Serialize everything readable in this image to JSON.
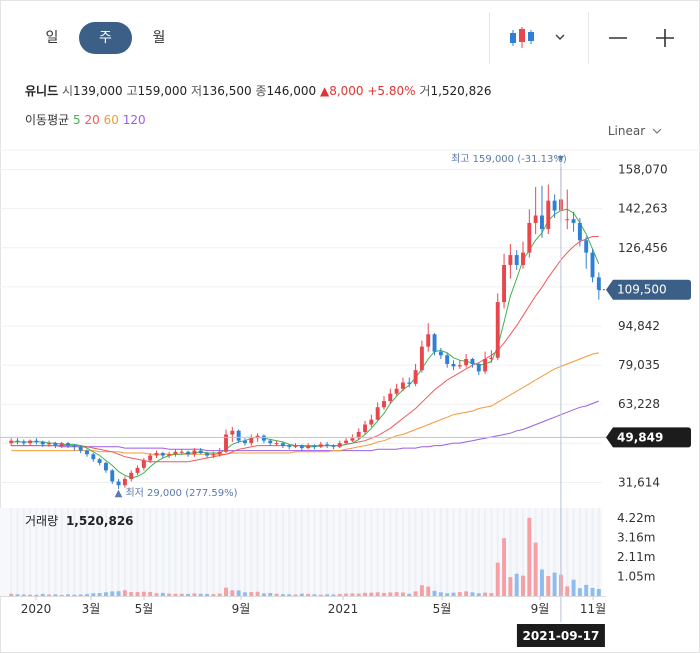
{
  "tabs": [
    {
      "label": "일",
      "active": false
    },
    {
      "label": "주",
      "active": true
    },
    {
      "label": "월",
      "active": false
    }
  ],
  "stock": {
    "name": "유니드",
    "open_label": "시",
    "open": "139,000",
    "high_label": "고",
    "high": "159,000",
    "low_label": "저",
    "low": "136,500",
    "close_label": "종",
    "close": "146,000",
    "change_arrow": "▲",
    "change": "8,000",
    "change_pct": "+5.80%",
    "volume_label": "거",
    "volume": "1,520,826"
  },
  "ma": {
    "label": "이동평균",
    "items": [
      {
        "value": "5",
        "color": "#3fb34f"
      },
      {
        "value": "20",
        "color": "#ef5a5a"
      },
      {
        "value": "60",
        "color": "#f39a3a"
      },
      {
        "value": "120",
        "color": "#9b5de5"
      }
    ]
  },
  "scale_label": "Linear",
  "colors": {
    "up": "#e8464d",
    "down": "#2f7fd6",
    "price_tag": "#3b5f86",
    "cross_tag": "#1c1c1c"
  },
  "chart_data": {
    "type": "candlestick",
    "y_ticks": [
      158070,
      142263,
      126456,
      110649,
      94842,
      79035,
      63228,
      47421,
      31614
    ],
    "y_tick_labels": [
      "158,070",
      "142,263",
      "126,456",
      "",
      "94,842",
      "79,035",
      "63,228",
      "",
      "31,614"
    ],
    "ylim": [
      23710,
      165974
    ],
    "last_price": 109500,
    "last_price_label": "109,500",
    "crosshair_price": 49849,
    "crosshair_price_label": "49,849",
    "crosshair_date": "2021-09-17",
    "high_annotation": "최고 159,000 (-31.13%)",
    "low_annotation": "▲ 최저 29,000 (277.59%)",
    "x_labels": [
      "2020",
      "3월",
      "5월",
      "9월",
      "2021",
      "5월",
      "9월",
      "11월"
    ],
    "volume_title": "거래량",
    "volume_value": "1,520,826",
    "volume_ticks": [
      4220000,
      3160000,
      2110000,
      1050000
    ],
    "volume_tick_labels": [
      "4.22m",
      "3.16m",
      "2.11m",
      "1.05m"
    ],
    "closes": [
      48500,
      48000,
      47500,
      48500,
      48000,
      47000,
      47500,
      46500,
      47500,
      46500,
      46000,
      44500,
      43000,
      41000,
      39500,
      36500,
      32000,
      30500,
      33000,
      35500,
      37500,
      40500,
      42500,
      43500,
      42500,
      43000,
      44000,
      44000,
      43000,
      44500,
      43500,
      42500,
      43000,
      44000,
      51000,
      52500,
      48500,
      47500,
      49500,
      50500,
      48500,
      47500,
      47500,
      46500,
      46000,
      46500,
      45500,
      46500,
      46000,
      47000,
      46500,
      46000,
      47500,
      48500,
      49500,
      52000,
      55000,
      57000,
      62000,
      64500,
      67500,
      69500,
      72000,
      71500,
      77000,
      86500,
      91500,
      84500,
      83000,
      79500,
      78500,
      79000,
      81500,
      79500,
      76500,
      81500,
      82000,
      104500,
      119500,
      123500,
      119500,
      124500,
      136500,
      139500,
      134000,
      145500,
      141500,
      146000,
      138000,
      136500,
      129500,
      124500,
      114500,
      109500
    ],
    "opens": [
      47500,
      48500,
      48000,
      47500,
      48500,
      48000,
      47000,
      47500,
      46500,
      47500,
      46500,
      46000,
      44500,
      43000,
      41000,
      39500,
      36500,
      32000,
      30500,
      33000,
      35500,
      37500,
      40500,
      42500,
      43500,
      42500,
      43000,
      44000,
      44000,
      43000,
      44500,
      43500,
      42500,
      43000,
      44000,
      51000,
      52500,
      48500,
      47500,
      49500,
      50500,
      48500,
      47500,
      47500,
      46500,
      46000,
      46500,
      45500,
      46500,
      46000,
      47000,
      46500,
      46000,
      47500,
      48500,
      49500,
      52000,
      55000,
      57000,
      62000,
      64500,
      67500,
      69500,
      72000,
      71500,
      77000,
      86500,
      91500,
      84500,
      83000,
      79500,
      78500,
      79000,
      81500,
      79500,
      76500,
      81500,
      82000,
      104500,
      119500,
      123500,
      119500,
      124500,
      136500,
      139500,
      134000,
      145500,
      141500,
      138000,
      138000,
      136500,
      129500,
      124500,
      114500
    ],
    "highs": [
      49500,
      49500,
      49000,
      49000,
      49500,
      48500,
      48500,
      48000,
      48000,
      48000,
      47000,
      46500,
      45000,
      43500,
      41500,
      40000,
      37000,
      33000,
      34000,
      36500,
      38500,
      41500,
      43500,
      44500,
      44000,
      44000,
      45000,
      45000,
      44500,
      45500,
      45500,
      44000,
      44000,
      45500,
      53000,
      54000,
      53000,
      49500,
      51000,
      51500,
      51000,
      49000,
      48500,
      48000,
      47000,
      47500,
      47000,
      47500,
      47000,
      48000,
      48000,
      47000,
      48500,
      49500,
      51000,
      53500,
      56500,
      59000,
      64000,
      66500,
      69500,
      71500,
      74000,
      74000,
      79500,
      89000,
      96000,
      92000,
      86000,
      84000,
      81000,
      81000,
      83500,
      82000,
      80000,
      84500,
      85000,
      108000,
      124000,
      128000,
      125500,
      129000,
      142000,
      151000,
      151500,
      152000,
      148000,
      159000,
      150000,
      141000,
      138500,
      131000,
      126000,
      116500
    ],
    "lows": [
      46500,
      47000,
      46500,
      46500,
      47000,
      46000,
      46000,
      45500,
      45500,
      45500,
      44500,
      43500,
      42000,
      40000,
      38500,
      35500,
      31000,
      29000,
      29500,
      32000,
      34500,
      36500,
      39500,
      41500,
      41500,
      41500,
      42000,
      43000,
      42000,
      42000,
      43000,
      41500,
      41500,
      42000,
      43500,
      48000,
      47500,
      46500,
      46500,
      48000,
      47500,
      46500,
      46500,
      45500,
      45000,
      45500,
      44500,
      45000,
      45000,
      45500,
      45500,
      45000,
      45500,
      47000,
      48000,
      49000,
      51000,
      54000,
      56500,
      61000,
      63500,
      66500,
      68500,
      70000,
      70500,
      76000,
      84500,
      83000,
      81500,
      78000,
      77000,
      77500,
      78000,
      78000,
      75000,
      75500,
      80000,
      81000,
      102000,
      114000,
      117500,
      118000,
      122500,
      132000,
      130500,
      132000,
      138500,
      136500,
      134000,
      133000,
      127000,
      118000,
      112500,
      105500
    ],
    "ma5": [
      48000,
      48000,
      48000,
      48000,
      48000,
      48000,
      47500,
      47500,
      47000,
      47000,
      47000,
      46500,
      45500,
      44000,
      42500,
      40500,
      38500,
      36000,
      34500,
      33500,
      34000,
      35500,
      38000,
      40000,
      41500,
      42500,
      43000,
      43000,
      43500,
      43500,
      44000,
      43500,
      43500,
      43500,
      45000,
      47000,
      48000,
      48500,
      49500,
      50000,
      49500,
      49000,
      48500,
      48000,
      47000,
      46500,
      46500,
      46000,
      46000,
      46500,
      46500,
      46500,
      46500,
      47000,
      47500,
      49000,
      51000,
      53500,
      56500,
      59500,
      63500,
      66500,
      69000,
      71000,
      74000,
      77500,
      81500,
      84500,
      85000,
      84000,
      82000,
      81000,
      80500,
      80000,
      79000,
      79500,
      80500,
      86500,
      96500,
      107000,
      114000,
      121500,
      125500,
      129500,
      132500,
      137500,
      140000,
      141500,
      142000,
      140500,
      136500,
      132000,
      126000,
      120000
    ],
    "ma20": [
      46500,
      46500,
      46500,
      46500,
      46500,
      46500,
      46500,
      46500,
      46500,
      46500,
      46500,
      46500,
      46000,
      45500,
      45000,
      44500,
      44000,
      43000,
      42000,
      41500,
      41000,
      40500,
      40000,
      40000,
      40000,
      40000,
      40000,
      40000,
      40000,
      40500,
      41000,
      41500,
      42000,
      42500,
      43000,
      44000,
      45000,
      45500,
      46000,
      46500,
      46500,
      46500,
      46500,
      46500,
      46500,
      46500,
      46500,
      46500,
      46500,
      46500,
      46500,
      46500,
      46500,
      47000,
      47500,
      48000,
      48500,
      49500,
      50500,
      52000,
      53500,
      55500,
      57500,
      59500,
      61500,
      64000,
      66500,
      69000,
      71000,
      73000,
      74500,
      76000,
      77500,
      79000,
      80000,
      81500,
      83000,
      85000,
      88000,
      91500,
      95000,
      99000,
      103000,
      107000,
      110500,
      114500,
      118000,
      121500,
      124500,
      127000,
      129000,
      130000,
      131000,
      131000
    ],
    "ma60": [
      44500,
      44500,
      44500,
      44500,
      44500,
      44500,
      44500,
      44500,
      44500,
      44500,
      44500,
      44500,
      44500,
      44500,
      44000,
      44000,
      44000,
      44000,
      43500,
      43500,
      43500,
      43500,
      43000,
      43000,
      43000,
      43000,
      43000,
      43000,
      43000,
      43000,
      43000,
      43000,
      43000,
      43000,
      43000,
      43500,
      43500,
      43500,
      43500,
      43500,
      43500,
      43500,
      43500,
      43500,
      43500,
      44000,
      44000,
      44000,
      44000,
      44000,
      44000,
      44500,
      44500,
      45000,
      45500,
      46000,
      46500,
      47000,
      48000,
      48500,
      49500,
      50500,
      51000,
      52000,
      53000,
      54000,
      55000,
      56000,
      57000,
      58000,
      59000,
      59500,
      60000,
      60500,
      61500,
      62000,
      62500,
      64000,
      65500,
      67000,
      68500,
      70000,
      71500,
      73000,
      74500,
      76000,
      77500,
      78500,
      79500,
      80500,
      81500,
      82500,
      83500,
      84000
    ],
    "ma120": [
      46500,
      46500,
      46500,
      46500,
      46500,
      46500,
      46500,
      46500,
      46000,
      46000,
      46000,
      46000,
      46000,
      46000,
      46000,
      46000,
      46000,
      46000,
      45500,
      45500,
      45500,
      45500,
      45500,
      45500,
      45500,
      45000,
      45000,
      45000,
      45000,
      45000,
      45000,
      44500,
      44500,
      44500,
      44500,
      44500,
      44500,
      44500,
      44500,
      44500,
      44500,
      44500,
      44500,
      44500,
      44500,
      44500,
      44500,
      44500,
      44500,
      44500,
      44500,
      44500,
      44500,
      44500,
      44500,
      44500,
      44500,
      44500,
      45000,
      45000,
      45000,
      45000,
      45500,
      45500,
      45500,
      46000,
      46000,
      46500,
      46500,
      47000,
      47500,
      47500,
      48000,
      48500,
      49000,
      49500,
      50000,
      50500,
      51000,
      51500,
      52500,
      53000,
      54000,
      55000,
      56000,
      57000,
      58000,
      59000,
      60000,
      61000,
      62000,
      62500,
      63500,
      64500
    ],
    "volumes": [
      120000,
      90000,
      80000,
      70000,
      60000,
      110000,
      80000,
      90000,
      60000,
      90000,
      70000,
      80000,
      100000,
      150000,
      160000,
      200000,
      250000,
      260000,
      310000,
      210000,
      210000,
      230000,
      220000,
      150000,
      170000,
      130000,
      120000,
      120000,
      110000,
      140000,
      120000,
      110000,
      100000,
      130000,
      450000,
      310000,
      300000,
      200000,
      210000,
      230000,
      140000,
      160000,
      120000,
      100000,
      90000,
      80000,
      130000,
      110000,
      90000,
      70000,
      90000,
      80000,
      110000,
      130000,
      140000,
      130000,
      170000,
      180000,
      200000,
      160000,
      190000,
      210000,
      190000,
      120000,
      250000,
      580000,
      510000,
      280000,
      200000,
      150000,
      180000,
      210000,
      250000,
      200000,
      150000,
      180000,
      160000,
      1800000,
      3120000,
      1020000,
      1200000,
      1100000,
      4220000,
      2880000,
      1430000,
      1080000,
      1260000,
      1150000,
      520000,
      880000,
      420000,
      600000,
      440000,
      380000
    ]
  }
}
